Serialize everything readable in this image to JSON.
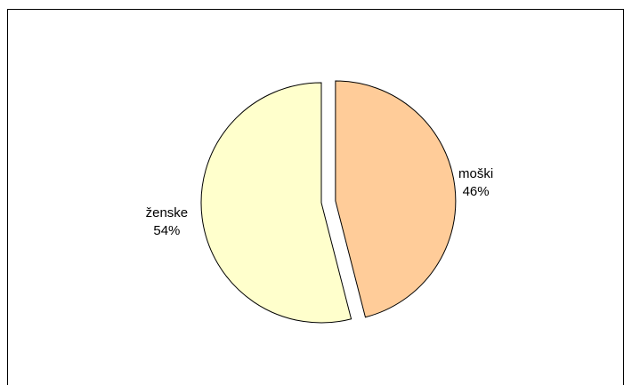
{
  "chart_data": {
    "type": "pie",
    "categories": [
      "moški",
      "ženske"
    ],
    "values": [
      46,
      54
    ],
    "value_labels": [
      "46%",
      "54%"
    ],
    "colors": [
      "#ffcc99",
      "#ffffcc"
    ]
  }
}
